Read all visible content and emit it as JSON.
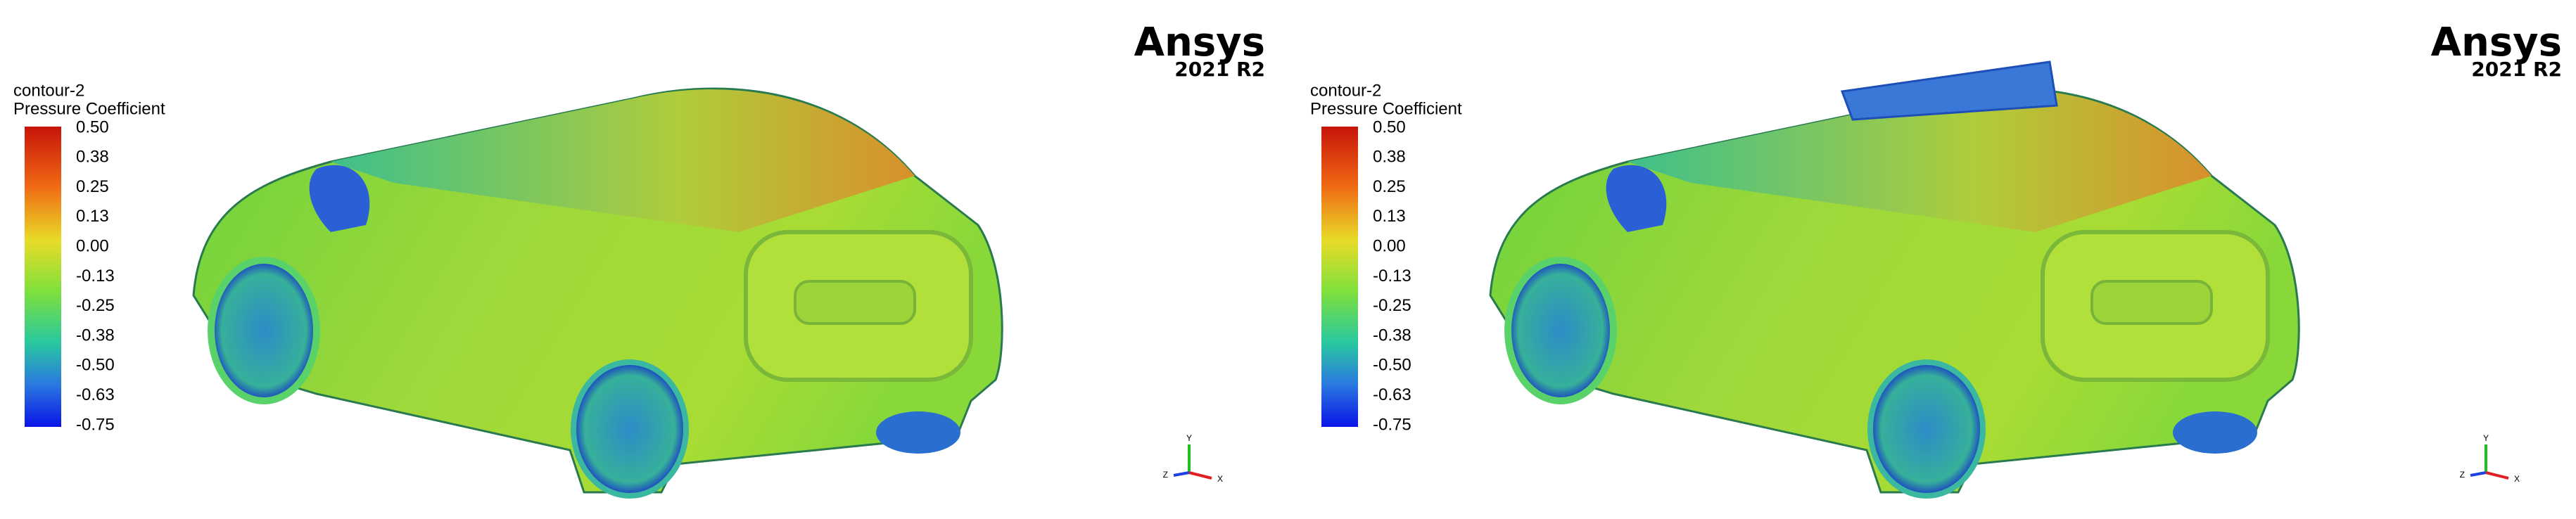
{
  "panels": [
    {
      "contour": "contour-2",
      "quantity": "Pressure Coefficient",
      "colorbar_labels": [
        "0.50",
        "0.38",
        "0.25",
        "0.13",
        "0.00",
        "-0.13",
        "-0.25",
        "-0.38",
        "-0.50",
        "-0.63",
        "-0.75"
      ],
      "logo": "Ansys",
      "version": "2021 R2",
      "axes": [
        "Y",
        "Z",
        "X"
      ]
    },
    {
      "contour": "contour-2",
      "quantity": "Pressure Coefficient",
      "colorbar_labels": [
        "0.50",
        "0.38",
        "0.25",
        "0.13",
        "0.00",
        "-0.13",
        "-0.25",
        "-0.38",
        "-0.50",
        "-0.63",
        "-0.75"
      ],
      "logo": "Ansys",
      "version": "2021 R2",
      "axes": [
        "Y",
        "Z",
        "X"
      ]
    }
  ]
}
